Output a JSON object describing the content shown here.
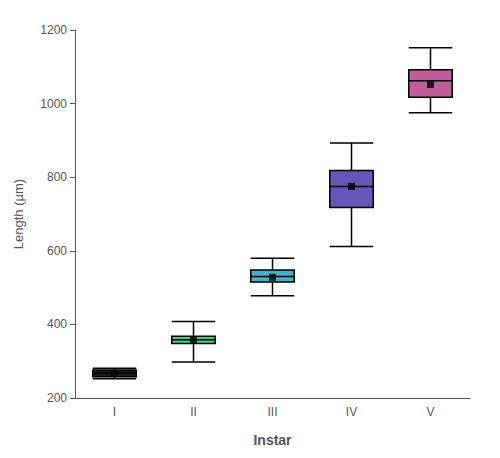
{
  "chart_data": {
    "type": "boxplot",
    "xlabel": "Instar",
    "ylabel": "Length (µm)",
    "categories": [
      "I",
      "II",
      "III",
      "IV",
      "V"
    ],
    "values": [
      [
        252,
        258,
        268,
        276,
        281
      ],
      [
        298,
        348,
        358,
        368,
        408
      ],
      [
        478,
        515,
        530,
        548,
        580
      ],
      [
        612,
        718,
        775,
        818,
        893
      ],
      [
        975,
        1017,
        1062,
        1092,
        1152
      ]
    ],
    "means": [
      267,
      358,
      528,
      775,
      1052
    ],
    "marker": "square",
    "colors": [
      "#1a1a1a",
      "#3ecf8e",
      "#4bafc4",
      "#6655bb",
      "#bf5f9a"
    ],
    "ylim": [
      200,
      1200
    ],
    "yticks": [
      200,
      400,
      600,
      800,
      1000,
      1200
    ],
    "grid": false
  }
}
